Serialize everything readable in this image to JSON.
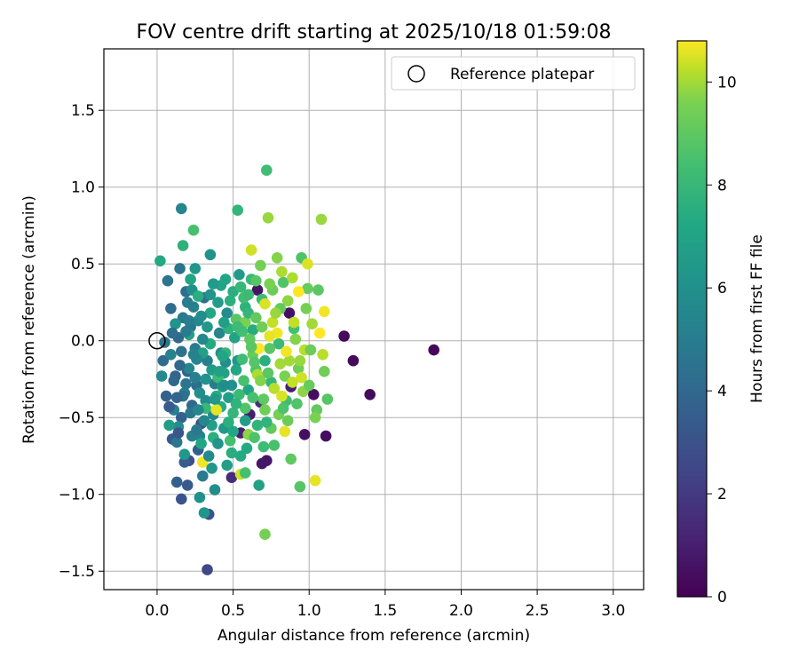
{
  "chart_data": {
    "type": "scatter",
    "title": "FOV centre drift starting at 2025/10/18 01:59:08",
    "xlabel": "Angular distance from reference (arcmin)",
    "ylabel": "Rotation from reference (arcmin)",
    "xlim": [
      -0.35,
      3.2
    ],
    "ylim": [
      -1.62,
      1.9
    ],
    "xticks": [
      0.0,
      0.5,
      1.0,
      1.5,
      2.0,
      2.5,
      3.0
    ],
    "xtick_labels": [
      "0.0",
      "0.5",
      "1.0",
      "1.5",
      "2.0",
      "2.5",
      "3.0"
    ],
    "yticks": [
      -1.5,
      -1.0,
      -0.5,
      0.0,
      0.5,
      1.0,
      1.5
    ],
    "ytick_labels": [
      "−1.5",
      "−1.0",
      "−0.5",
      "0.0",
      "0.5",
      "1.0",
      "1.5"
    ],
    "grid": true,
    "legend": {
      "position": "top-right",
      "entries": [
        "Reference platepar"
      ]
    },
    "reference_point": {
      "x": 0.0,
      "y": 0.0
    },
    "colorbar": {
      "label": "Hours from first FF file",
      "min": 0,
      "max": 10.8,
      "ticks": [
        0,
        2,
        4,
        6,
        8,
        10
      ],
      "tick_labels": [
        "0",
        "2",
        "4",
        "6",
        "8",
        "10"
      ],
      "colormap": "viridis"
    },
    "points": [
      [
        1.82,
        -0.06,
        0.2
      ],
      [
        1.23,
        0.03,
        0.3
      ],
      [
        1.29,
        -0.13,
        0.3
      ],
      [
        1.4,
        -0.35,
        0.3
      ],
      [
        1.11,
        -0.62,
        0.4
      ],
      [
        1.03,
        -0.35,
        0.4
      ],
      [
        0.97,
        -0.61,
        0.5
      ],
      [
        0.87,
        0.18,
        0.5
      ],
      [
        0.66,
        0.33,
        0.6
      ],
      [
        0.72,
        -0.78,
        0.7
      ],
      [
        0.69,
        -0.8,
        0.7
      ],
      [
        0.61,
        -0.48,
        0.9
      ],
      [
        0.88,
        -0.3,
        1.0
      ],
      [
        0.55,
        -0.6,
        1.1
      ],
      [
        0.49,
        -0.89,
        1.5
      ],
      [
        0.68,
        -0.4,
        1.6
      ],
      [
        0.33,
        -1.49,
        2.6
      ],
      [
        0.21,
        -0.78,
        2.8
      ],
      [
        0.34,
        -1.13,
        3.0
      ],
      [
        0.29,
        -0.54,
        3.0
      ],
      [
        0.16,
        -1.03,
        3.1
      ],
      [
        0.2,
        -0.94,
        3.3
      ],
      [
        0.1,
        -0.64,
        3.3
      ],
      [
        0.27,
        -0.71,
        3.5
      ],
      [
        0.18,
        -0.79,
        3.5
      ],
      [
        0.13,
        -0.92,
        3.6
      ],
      [
        0.16,
        -0.5,
        3.6
      ],
      [
        0.06,
        -0.36,
        3.7
      ],
      [
        0.12,
        -0.23,
        3.8
      ],
      [
        0.2,
        -0.2,
        3.8
      ],
      [
        0.23,
        -0.42,
        4.0
      ],
      [
        0.14,
        0.02,
        4.0
      ],
      [
        0.09,
        0.21,
        4.2
      ],
      [
        0.04,
        -0.13,
        4.2
      ],
      [
        0.19,
        0.32,
        4.3
      ],
      [
        0.26,
        -0.29,
        4.3
      ],
      [
        0.31,
        0.28,
        4.4
      ],
      [
        0.05,
        -0.01,
        4.5
      ],
      [
        0.15,
        0.47,
        4.5
      ],
      [
        0.07,
        0.39,
        4.6
      ],
      [
        0.22,
        0.09,
        4.6
      ],
      [
        0.13,
        -0.66,
        4.7
      ],
      [
        0.17,
        0.15,
        4.8
      ],
      [
        0.25,
        -0.05,
        4.9
      ],
      [
        0.3,
        -0.88,
        4.9
      ],
      [
        0.18,
        -0.34,
        5.0
      ],
      [
        0.38,
        -0.28,
        5.0
      ],
      [
        0.11,
        -0.45,
        5.1
      ],
      [
        0.24,
        0.22,
        5.2
      ],
      [
        0.33,
        -0.13,
        5.2
      ],
      [
        0.09,
        -0.09,
        5.3
      ],
      [
        0.28,
        -0.62,
        5.3
      ],
      [
        0.41,
        0.05,
        5.4
      ],
      [
        0.16,
        0.86,
        5.4
      ],
      [
        0.21,
        -0.18,
        5.5
      ],
      [
        0.37,
        -0.48,
        5.5
      ],
      [
        0.03,
        -0.23,
        5.6
      ],
      [
        0.27,
        0.13,
        5.6
      ],
      [
        0.42,
        -0.08,
        5.7
      ],
      [
        0.32,
        -0.39,
        5.7
      ],
      [
        0.14,
        -0.56,
        5.8
      ],
      [
        0.46,
        0.18,
        5.8
      ],
      [
        0.38,
        -0.97,
        5.9
      ],
      [
        0.28,
        -1.02,
        6.0
      ],
      [
        0.23,
        0.33,
        6.0
      ],
      [
        0.49,
        -0.29,
        6.1
      ],
      [
        0.35,
        0.56,
        6.1
      ],
      [
        0.12,
        0.11,
        6.2
      ],
      [
        0.31,
        -1.12,
        6.2
      ],
      [
        0.53,
        -0.13,
        6.3
      ],
      [
        0.25,
        0.47,
        6.3
      ],
      [
        0.44,
        -0.57,
        6.4
      ],
      [
        0.18,
        -0.74,
        6.4
      ],
      [
        0.54,
        0.43,
        6.5
      ],
      [
        0.36,
        -0.19,
        6.5
      ],
      [
        0.08,
        -0.55,
        6.6
      ],
      [
        0.4,
        0.25,
        6.6
      ],
      [
        0.58,
        -0.52,
        6.7
      ],
      [
        0.47,
        -0.37,
        6.7
      ],
      [
        0.21,
        0.04,
        6.8
      ],
      [
        0.3,
        -0.08,
        6.8
      ],
      [
        0.67,
        -0.94,
        6.9
      ],
      [
        0.51,
        0.02,
        7.0
      ],
      [
        0.44,
        -0.21,
        7.0
      ],
      [
        0.22,
        0.4,
        7.1
      ],
      [
        0.6,
        -0.32,
        7.1
      ],
      [
        0.35,
        0.18,
        7.2
      ],
      [
        0.29,
        -0.67,
        7.2
      ],
      [
        0.55,
        -0.75,
        7.3
      ],
      [
        0.02,
        0.52,
        7.3
      ],
      [
        0.63,
        0.07,
        7.4
      ],
      [
        0.42,
        -0.43,
        7.4
      ],
      [
        0.27,
        0.29,
        7.5
      ],
      [
        0.5,
        0.32,
        7.5
      ],
      [
        0.71,
        -0.13,
        7.6
      ],
      [
        0.37,
        -0.63,
        7.6
      ],
      [
        0.17,
        0.62,
        7.7
      ],
      [
        0.58,
        0.22,
        7.7
      ],
      [
        0.45,
        -0.08,
        7.8
      ],
      [
        0.66,
        -0.55,
        7.8
      ],
      [
        0.53,
        0.85,
        7.9
      ],
      [
        0.75,
        -0.27,
        7.9
      ],
      [
        0.32,
        -0.44,
        8.0
      ],
      [
        0.62,
        0.4,
        8.0
      ],
      [
        0.8,
        -0.02,
        8.1
      ],
      [
        0.4,
        -0.24,
        8.1
      ],
      [
        0.56,
        -0.12,
        8.2
      ],
      [
        0.69,
        0.27,
        8.2
      ],
      [
        0.85,
        -0.39,
        8.3
      ],
      [
        0.72,
        1.11,
        8.3
      ],
      [
        0.48,
        -0.65,
        8.4
      ],
      [
        0.9,
        0.08,
        8.4
      ],
      [
        0.24,
        0.72,
        8.5
      ],
      [
        0.77,
        -0.68,
        8.5
      ],
      [
        0.65,
        -0.19,
        8.6
      ],
      [
        0.95,
        0.54,
        8.6
      ],
      [
        0.83,
        0.38,
        8.7
      ],
      [
        0.58,
        -0.44,
        8.7
      ],
      [
        0.94,
        -0.95,
        8.8
      ],
      [
        1.12,
        -0.38,
        8.8
      ],
      [
        0.74,
        -0.05,
        8.9
      ],
      [
        0.52,
        0.14,
        8.9
      ],
      [
        0.88,
        -0.77,
        9.0
      ],
      [
        0.7,
        -0.38,
        9.0
      ],
      [
        1.05,
        -0.45,
        9.1
      ],
      [
        0.81,
        0.21,
        9.1
      ],
      [
        0.99,
        0.34,
        9.2
      ],
      [
        0.63,
        -0.09,
        9.2
      ],
      [
        0.86,
        -0.52,
        9.3
      ],
      [
        0.76,
        0.33,
        9.3
      ],
      [
        1.1,
        -0.2,
        9.4
      ],
      [
        0.93,
        -0.18,
        9.4
      ],
      [
        0.71,
        -1.26,
        9.5
      ],
      [
        0.68,
        0.49,
        9.5
      ],
      [
        0.84,
        -0.23,
        9.6
      ],
      [
        1.04,
        -0.5,
        9.6
      ],
      [
        0.79,
        0.54,
        9.7
      ],
      [
        0.91,
        0.01,
        9.7
      ],
      [
        0.6,
        -0.61,
        9.8
      ],
      [
        0.96,
        -0.33,
        9.8
      ],
      [
        1.08,
        0.79,
        9.9
      ],
      [
        0.73,
        0.8,
        9.9
      ],
      [
        0.87,
        -0.13,
        10.0
      ],
      [
        1.02,
        0.11,
        10.0
      ],
      [
        0.66,
        -0.22,
        10.1
      ],
      [
        0.82,
        0.45,
        10.1
      ],
      [
        0.97,
        -0.06,
        10.2
      ],
      [
        1.09,
        -0.09,
        10.2
      ],
      [
        0.76,
        0.12,
        10.3
      ],
      [
        0.89,
        -0.27,
        10.3
      ],
      [
        0.62,
        0.59,
        10.4
      ],
      [
        0.55,
        -0.87,
        10.4
      ],
      [
        0.99,
        0.5,
        10.5
      ],
      [
        0.71,
        0.24,
        10.5
      ],
      [
        0.84,
        -0.59,
        10.6
      ],
      [
        1.04,
        -0.91,
        10.6
      ],
      [
        0.39,
        -0.45,
        10.6
      ],
      [
        0.79,
        0.05,
        10.7
      ],
      [
        0.3,
        -0.79,
        10.7
      ],
      [
        1.1,
        0.19,
        10.7
      ],
      [
        0.93,
        0.32,
        10.8
      ],
      [
        0.67,
        -0.05,
        10.8
      ],
      [
        0.41,
        -0.2,
        6.9
      ],
      [
        0.35,
        -0.02,
        7.3
      ],
      [
        0.45,
        -0.14,
        6.0
      ],
      [
        0.5,
        -0.47,
        7.9
      ],
      [
        0.28,
        -0.34,
        5.9
      ],
      [
        0.57,
        -0.26,
        8.5
      ],
      [
        0.61,
        0.01,
        9.0
      ],
      [
        0.47,
        0.08,
        7.7
      ],
      [
        0.33,
        0.09,
        6.4
      ],
      [
        0.39,
        -0.36,
        7.4
      ],
      [
        0.54,
        -0.35,
        8.1
      ],
      [
        0.43,
        -0.3,
        6.6
      ],
      [
        0.26,
        -0.12,
        5.4
      ],
      [
        0.52,
        -0.19,
        7.2
      ],
      [
        0.64,
        -0.14,
        8.8
      ],
      [
        0.58,
        0.12,
        9.6
      ],
      [
        0.36,
        -0.55,
        6.8
      ],
      [
        0.47,
        -0.53,
        7.6
      ],
      [
        0.19,
        -0.28,
        4.6
      ],
      [
        0.23,
        -0.62,
        5.2
      ],
      [
        0.42,
        0.36,
        7.0
      ],
      [
        0.57,
        0.28,
        8.3
      ],
      [
        0.71,
        -0.45,
        9.4
      ],
      [
        0.77,
        -0.31,
        10.2
      ],
      [
        0.64,
        -0.63,
        8.6
      ],
      [
        0.49,
        -0.73,
        7.5
      ],
      [
        0.36,
        -0.83,
        6.3
      ],
      [
        0.25,
        -0.24,
        5.1
      ],
      [
        0.44,
        0.12,
        6.7
      ],
      [
        0.6,
        0.18,
        7.9
      ],
      [
        0.73,
        -0.21,
        8.9
      ],
      [
        0.82,
        -0.36,
        10.5
      ],
      [
        0.86,
        0.26,
        9.8
      ],
      [
        0.92,
        -0.41,
        8.7
      ],
      [
        0.95,
        -0.24,
        10.4
      ],
      [
        1.01,
        -0.06,
        9.3
      ],
      [
        0.8,
        -0.48,
        9.5
      ],
      [
        0.68,
        -0.26,
        9.7
      ],
      [
        0.74,
        0.03,
        10.6
      ],
      [
        0.65,
        0.15,
        9.1
      ],
      [
        0.56,
        0.06,
        8.4
      ],
      [
        0.52,
        -0.41,
        7.8
      ],
      [
        0.4,
        -0.67,
        6.2
      ],
      [
        0.31,
        -0.52,
        5.6
      ],
      [
        0.22,
        -0.47,
        4.7
      ],
      [
        0.15,
        -0.16,
        4.1
      ],
      [
        0.17,
        -0.36,
        4.4
      ],
      [
        0.2,
        0.25,
        5.0
      ],
      [
        0.29,
        0.16,
        5.8
      ],
      [
        0.37,
        0.37,
        6.5
      ],
      [
        0.48,
        0.26,
        7.6
      ],
      [
        0.55,
        0.35,
        8.0
      ],
      [
        0.65,
        0.39,
        8.8
      ],
      [
        0.78,
        0.18,
        9.9
      ],
      [
        0.9,
        0.12,
        10.3
      ],
      [
        0.98,
        0.21,
        9.5
      ],
      [
        1.0,
        -0.29,
        9.2
      ],
      [
        0.85,
        -0.07,
        10.7
      ],
      [
        0.7,
        -0.69,
        8.2
      ],
      [
        0.59,
        -0.7,
        7.3
      ],
      [
        0.46,
        -0.81,
        6.7
      ],
      [
        0.34,
        -0.75,
        5.7
      ],
      [
        0.26,
        -0.58,
        4.8
      ],
      [
        0.13,
        -0.37,
        3.9
      ],
      [
        0.1,
        0.05,
        4.3
      ],
      [
        0.11,
        -0.26,
        4.0
      ],
      [
        0.24,
        -0.09,
        5.3
      ],
      [
        0.32,
        -0.25,
        6.1
      ],
      [
        0.43,
        -0.1,
        7.1
      ],
      [
        0.53,
        0.09,
        8.2
      ],
      [
        0.62,
        -0.04,
        8.9
      ],
      [
        0.69,
        0.09,
        9.4
      ],
      [
        0.81,
        -0.15,
        10.0
      ],
      [
        0.75,
        -0.57,
        9.1
      ],
      [
        0.63,
        -0.37,
        8.5
      ],
      [
        0.5,
        -0.59,
        7.2
      ],
      [
        0.38,
        -0.38,
        6.4
      ],
      [
        0.27,
        -0.45,
        5.5
      ],
      [
        0.16,
        -0.07,
        4.5
      ],
      [
        0.21,
        0.13,
        5.0
      ],
      [
        0.35,
        0.3,
        6.2
      ],
      [
        0.45,
        0.4,
        7.1
      ],
      [
        0.6,
        0.3,
        8.1
      ],
      [
        0.74,
        0.37,
        9.6
      ],
      [
        0.89,
        0.41,
        10.1
      ],
      [
        1.06,
        0.33,
        8.9
      ],
      [
        1.07,
        0.05,
        10.8
      ],
      [
        0.94,
        -0.13,
        9.9
      ],
      [
        0.83,
        -0.44,
        8.6
      ],
      [
        0.72,
        -0.53,
        7.8
      ],
      [
        0.58,
        -0.86,
        8.4
      ],
      [
        0.44,
        -0.29,
        5.9
      ],
      [
        0.3,
        0.01,
        5.6
      ],
      [
        0.19,
        0.06,
        4.9
      ],
      [
        0.08,
        -0.43,
        3.4
      ],
      [
        0.14,
        -0.6,
        3.2
      ]
    ]
  }
}
